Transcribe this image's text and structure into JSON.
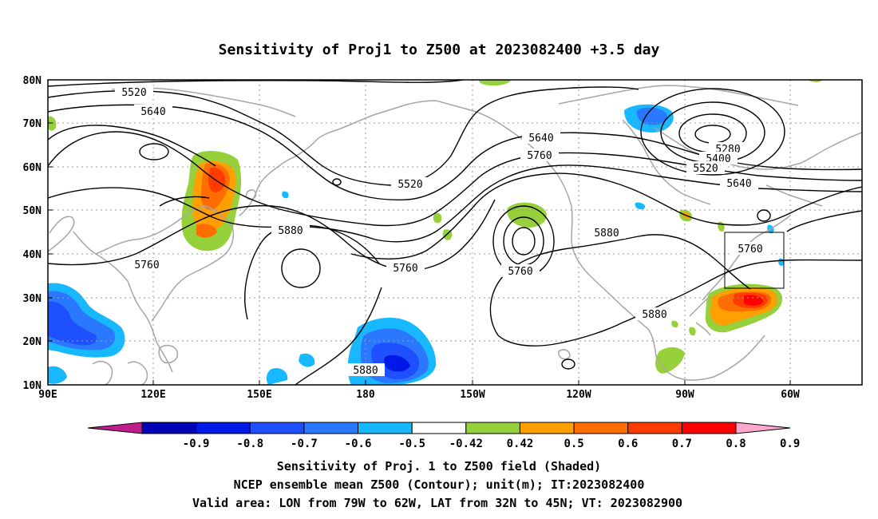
{
  "title": "Sensitivity of Proj1 to Z500 at 2023082400 +3.5 day",
  "lat_ticks": [
    "10N",
    "20N",
    "30N",
    "40N",
    "50N",
    "60N",
    "70N",
    "80N"
  ],
  "lon_ticks": [
    "90E",
    "120E",
    "150E",
    "180",
    "150W",
    "120W",
    "90W",
    "60W"
  ],
  "contour_labels": [
    "5520",
    "5640",
    "5640",
    "5760",
    "5520",
    "5280",
    "5400",
    "5520",
    "5640",
    "5880",
    "5760",
    "5760",
    "5760",
    "5880",
    "5760",
    "5880",
    "5880"
  ],
  "colorbar": {
    "labels": [
      "-0.9",
      "-0.8",
      "-0.7",
      "-0.6",
      "-0.5",
      "-0.42",
      "0.42",
      "0.5",
      "0.6",
      "0.7",
      "0.8",
      "0.9"
    ],
    "colors": [
      "#c01c8e",
      "#0000b8",
      "#0018e8",
      "#1e50ff",
      "#2a78ff",
      "#18b8ff",
      "#ffffff",
      "#96d03a",
      "#ffa000",
      "#ff6c00",
      "#ff3c00",
      "#ff0000",
      "#ffa8cc"
    ]
  },
  "footer": {
    "line1": "Sensitivity of Proj. 1 to Z500 field (Shaded)",
    "line2": "NCEP ensemble mean Z500 (Contour); unit(m); IT:2023082400",
    "line3": "Valid area: LON from 79W to 62W, LAT from 32N to 45N; VT: 2023082900"
  }
}
